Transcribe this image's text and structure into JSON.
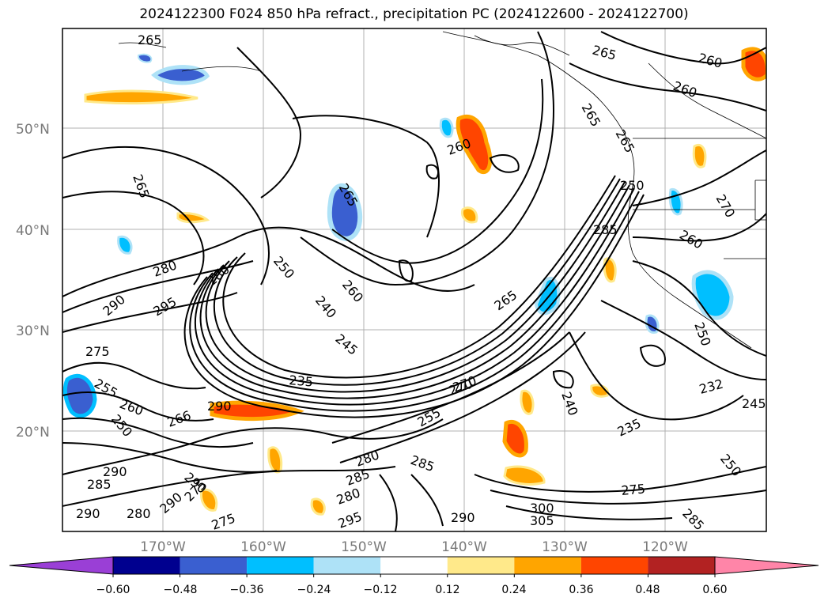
{
  "title": "2024122300 F024 850 hPa refract., precipitation PC (2024122600 - 2024122700)",
  "map": {
    "lat_labels": [
      "50°N",
      "40°N",
      "30°N",
      "20°N"
    ],
    "lon_labels": [
      "170°W",
      "160°W",
      "150°W",
      "140°W",
      "130°W",
      "120°W"
    ],
    "contour_labels": [
      "265",
      "265",
      "260",
      "260",
      "265",
      "260",
      "265",
      "265",
      "265",
      "250",
      "260",
      "240",
      "245",
      "235",
      "265",
      "270",
      "285",
      "280",
      "280",
      "295",
      "290",
      "270",
      "275",
      "255",
      "260",
      "250",
      "266",
      "290",
      "280",
      "285",
      "285",
      "290",
      "290",
      "285",
      "280",
      "290",
      "275",
      "275",
      "290",
      "295",
      "290",
      "300",
      "305",
      "280",
      "285",
      "275",
      "235",
      "232",
      "240",
      "245",
      "250",
      "250",
      "250",
      "270",
      "255",
      "260"
    ]
  },
  "colorbar": {
    "colors": [
      "#9a3fd6",
      "#00008f",
      "#3a5fd0",
      "#00bfff",
      "#aee2f7",
      "#ffffff",
      "#ffe98a",
      "#ffa500",
      "#ff4500",
      "#b22222",
      "#ff85a8"
    ],
    "ticks": [
      "−0.60",
      "−0.48",
      "−0.36",
      "−0.24",
      "−0.12",
      "0.12",
      "0.24",
      "0.36",
      "0.48",
      "0.60"
    ]
  }
}
